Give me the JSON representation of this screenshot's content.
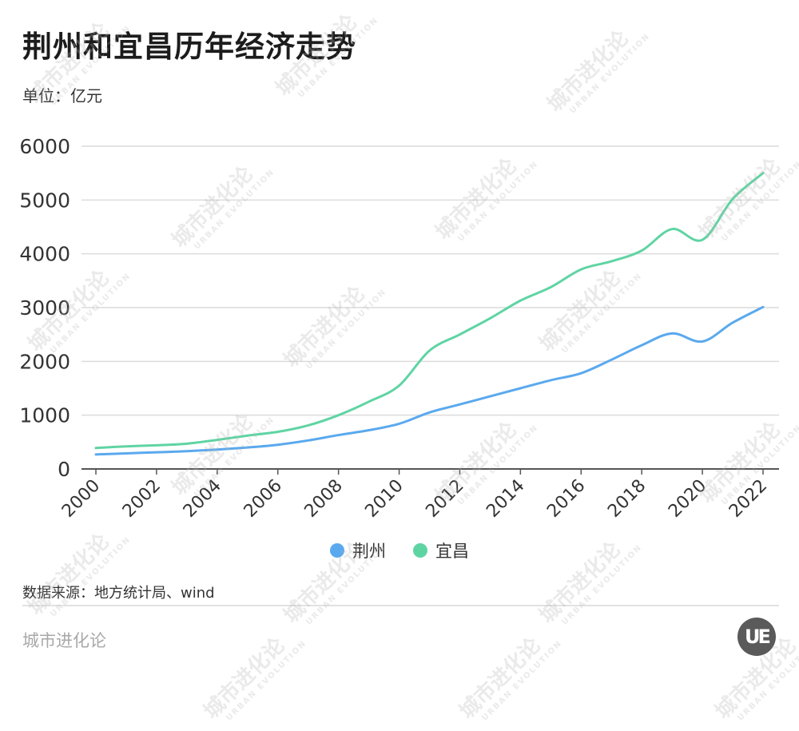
{
  "header": {
    "title": "荆州和宜昌历年经济走势",
    "unit": "单位：亿元"
  },
  "legend": [
    {
      "label": "荆州",
      "color": "#5aa9ee"
    },
    {
      "label": "宜昌",
      "color": "#5fd4a3"
    }
  ],
  "footer": {
    "source": "数据来源：地方统计局、wind",
    "brand": "城市进化论",
    "logo_text": "UE"
  },
  "watermark": {
    "text": "城市进化论",
    "subtext": "URBAN EVOLUTION"
  },
  "chart_data": {
    "type": "line",
    "title": "荆州和宜昌历年经济走势",
    "subtitle": "单位：亿元",
    "xlabel": "",
    "ylabel": "亿元",
    "ylim": [
      0,
      6000
    ],
    "yticks": [
      0,
      1000,
      2000,
      3000,
      4000,
      5000,
      6000
    ],
    "grid": true,
    "legend_position": "bottom",
    "x": [
      2000,
      2001,
      2002,
      2003,
      2004,
      2005,
      2006,
      2007,
      2008,
      2009,
      2010,
      2011,
      2012,
      2013,
      2014,
      2015,
      2016,
      2017,
      2018,
      2019,
      2020,
      2021,
      2022
    ],
    "xtick_labels": [
      "2000",
      "2002",
      "2004",
      "2006",
      "2008",
      "2010",
      "2012",
      "2014",
      "2016",
      "2018",
      "2020",
      "2022"
    ],
    "series": [
      {
        "name": "荆州",
        "color": "#5aa9ee",
        "values": [
          270,
          290,
          310,
          330,
          360,
          400,
          450,
          530,
          630,
          720,
          840,
          1050,
          1200,
          1350,
          1500,
          1650,
          1780,
          2030,
          2300,
          2520,
          2370,
          2720,
          3010
        ]
      },
      {
        "name": "宜昌",
        "color": "#5fd4a3",
        "values": [
          390,
          420,
          440,
          470,
          540,
          620,
          690,
          810,
          1000,
          1250,
          1550,
          2200,
          2500,
          2800,
          3130,
          3380,
          3710,
          3860,
          4060,
          4460,
          4260,
          5020,
          5500
        ]
      }
    ]
  }
}
